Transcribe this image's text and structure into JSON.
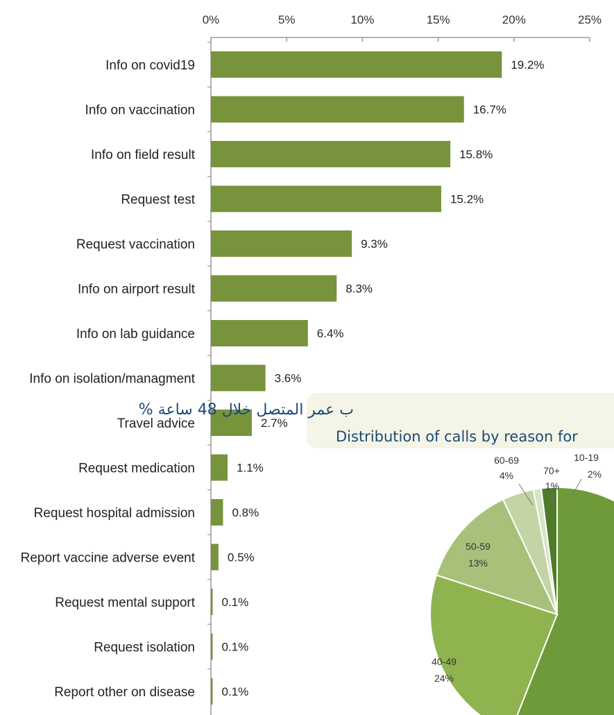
{
  "chart_data": [
    {
      "type": "bar",
      "orientation": "horizontal",
      "axis_position": "top",
      "xlim": [
        0,
        25
      ],
      "ticks": [
        "0%",
        "5%",
        "10%",
        "15%",
        "20%",
        "25%"
      ],
      "tick_values": [
        0,
        5,
        10,
        15,
        20,
        25
      ],
      "categories": [
        "Info on covid19",
        "Info on vaccination",
        "Info on field result",
        "Request test",
        "Request vaccination",
        "Info on airport result",
        "Info on lab guidance",
        "Info on isolation/managment",
        "Travel advice",
        "Request medication",
        "Request hospital admission",
        "Report vaccine adverse event",
        "Request mental support",
        "Request isolation",
        "Report other on disease"
      ],
      "values": [
        19.2,
        16.7,
        15.8,
        15.2,
        9.3,
        8.3,
        6.4,
        3.6,
        2.7,
        1.1,
        0.8,
        0.5,
        0.1,
        0.1,
        0.1
      ],
      "value_labels": [
        "19.2%",
        "16.7%",
        "15.8%",
        "15.2%",
        "9.3%",
        "8.3%",
        "6.4%",
        "3.6%",
        "2.7%",
        "1.1%",
        "0.8%",
        "0.5%",
        "0.1%",
        "0.1%",
        "0.1%"
      ],
      "bar_color": "#77933c",
      "grid": false
    },
    {
      "type": "pie",
      "title_ar": "ب عمر المتصل خلال 48 ساعة %",
      "title_en": "Distribution of calls by reason for",
      "categories": [
        "10-19",
        "70+",
        "60-69",
        "50-59",
        "40-49"
      ],
      "values": [
        2,
        1,
        4,
        13,
        24
      ],
      "value_labels": [
        "2%",
        "1%",
        "4%",
        "13%",
        "24%"
      ],
      "colors": [
        "#4e7a2a",
        "#d9e3c6",
        "#c3d4a5",
        "#a8c17a",
        "#8fb34e"
      ],
      "partial": true
    }
  ],
  "colors": {
    "bar": "#77933c",
    "banner_bg": "#f4f5e6",
    "banner_text": "#1b4a78",
    "axis": "#999999"
  }
}
